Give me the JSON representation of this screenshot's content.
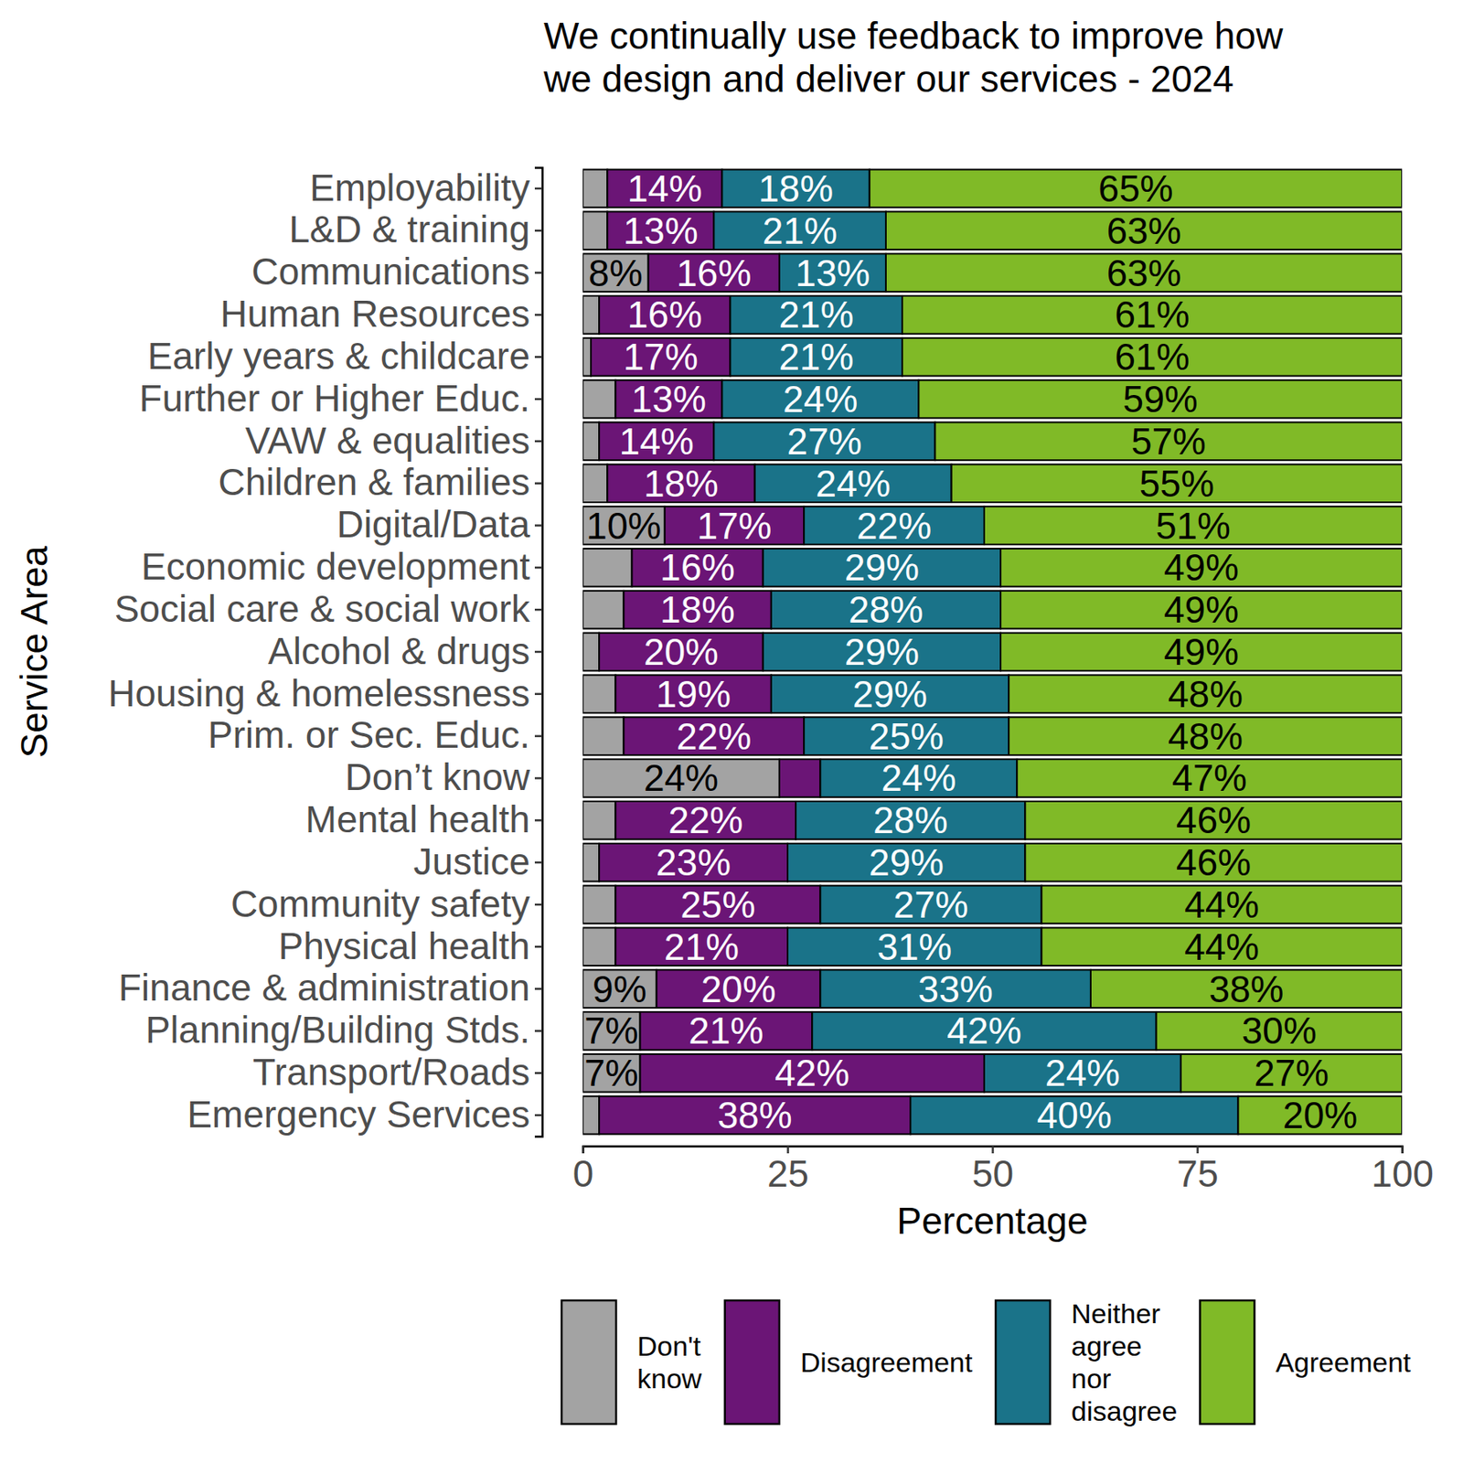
{
  "chart_data": {
    "type": "bar",
    "orientation": "horizontal",
    "stacked": true,
    "data_labels": true,
    "grid": false,
    "legend": "bottom",
    "title": "We continually use feedback to improve how we design and deliver our services - 2024",
    "x_label": "Percentage",
    "y_label": "Service Area",
    "xlim": [
      0,
      100
    ],
    "xticks": [
      0,
      25,
      50,
      75,
      100
    ],
    "categories": [
      "Employability",
      "L&D & training",
      "Communications",
      "Human Resources",
      "Early years & childcare",
      "Further or Higher Educ.",
      "VAW & equalities",
      "Children & families",
      "Digital/Data",
      "Economic development",
      "Social care & social work",
      "Alcohol & drugs",
      "Housing & homelessness",
      "Prim. or Sec. Educ.",
      "Don’t know",
      "Mental health",
      "Justice",
      "Community safety",
      "Physical health",
      "Finance & administration",
      "Planning/Building Stds.",
      "Transport/Roads",
      "Emergency Services"
    ],
    "series": [
      {
        "name": "Don't know",
        "color": "#a3a3a3",
        "values": [
          3,
          3,
          8,
          2,
          1,
          4,
          2,
          3,
          10,
          6,
          5,
          2,
          4,
          5,
          24,
          4,
          2,
          4,
          4,
          9,
          7,
          7,
          2
        ],
        "value_labels": [
          null,
          null,
          "8%",
          null,
          null,
          null,
          null,
          null,
          "10%",
          null,
          null,
          null,
          null,
          null,
          "24%",
          null,
          null,
          null,
          null,
          "9%",
          "7%",
          "7%",
          null
        ]
      },
      {
        "name": "Disagreement",
        "color": "#6b1576",
        "values": [
          14,
          13,
          16,
          16,
          17,
          13,
          14,
          18,
          17,
          16,
          18,
          20,
          19,
          22,
          5,
          22,
          23,
          25,
          21,
          20,
          21,
          42,
          38
        ],
        "value_labels": [
          "14%",
          "13%",
          "16%",
          "16%",
          "17%",
          "13%",
          "14%",
          "18%",
          "17%",
          "16%",
          "18%",
          "20%",
          "19%",
          "22%",
          null,
          "22%",
          "23%",
          "25%",
          "21%",
          "20%",
          "21%",
          "42%",
          "38%"
        ]
      },
      {
        "name": "Neither agree nor disagree",
        "color": "#1a7389",
        "values": [
          18,
          21,
          13,
          21,
          21,
          24,
          27,
          24,
          22,
          29,
          28,
          29,
          29,
          25,
          24,
          28,
          29,
          27,
          31,
          33,
          42,
          24,
          40
        ],
        "value_labels": [
          "18%",
          "21%",
          "13%",
          "21%",
          "21%",
          "24%",
          "27%",
          "24%",
          "22%",
          "29%",
          "28%",
          "29%",
          "29%",
          "25%",
          "24%",
          "28%",
          "29%",
          "27%",
          "31%",
          "33%",
          "42%",
          "24%",
          "40%"
        ]
      },
      {
        "name": "Agreement",
        "color": "#80ba27",
        "values": [
          65,
          63,
          63,
          61,
          61,
          59,
          57,
          55,
          51,
          49,
          49,
          49,
          48,
          48,
          47,
          46,
          46,
          44,
          44,
          38,
          30,
          27,
          20
        ],
        "value_labels": [
          "65%",
          "63%",
          "63%",
          "61%",
          "61%",
          "59%",
          "57%",
          "55%",
          "51%",
          "49%",
          "49%",
          "49%",
          "48%",
          "48%",
          "47%",
          "46%",
          "46%",
          "44%",
          "44%",
          "38%",
          "30%",
          "27%",
          "20%"
        ]
      }
    ]
  }
}
